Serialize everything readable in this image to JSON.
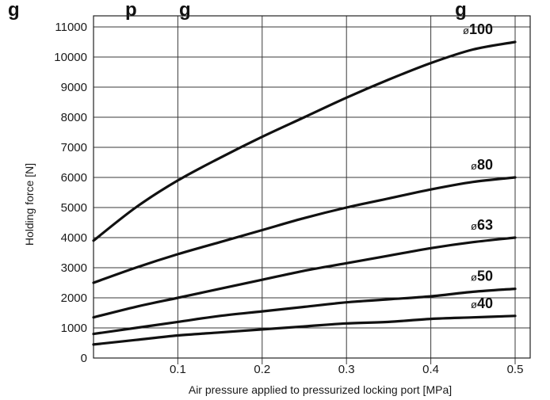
{
  "chart_data": {
    "type": "line",
    "title_fragment": "g                    p        g                                                  g",
    "xlabel": "Air pressure applied to pressurized locking port [MPa]",
    "ylabel": "Holding force [N]",
    "xlim": [
      0,
      0.5
    ],
    "ylim": [
      0,
      11000
    ],
    "x_ticks": [
      "0.1",
      "0.2",
      "0.3",
      "0.4",
      "0.5"
    ],
    "y_ticks": [
      "0",
      "1000",
      "2000",
      "3000",
      "4000",
      "5000",
      "6000",
      "7000",
      "8000",
      "9000",
      "10000",
      "11000"
    ],
    "grid": true,
    "series": [
      {
        "name": "100",
        "x": [
          0,
          0.05,
          0.1,
          0.15,
          0.2,
          0.25,
          0.3,
          0.35,
          0.4,
          0.45,
          0.5
        ],
        "values": [
          3900,
          5000,
          5900,
          6650,
          7350,
          8000,
          8650,
          9250,
          9800,
          10250,
          10500
        ]
      },
      {
        "name": "80",
        "x": [
          0,
          0.05,
          0.1,
          0.15,
          0.2,
          0.25,
          0.3,
          0.35,
          0.4,
          0.45,
          0.5
        ],
        "values": [
          2500,
          3000,
          3450,
          3850,
          4250,
          4650,
          5000,
          5300,
          5600,
          5850,
          6000
        ]
      },
      {
        "name": "63",
        "x": [
          0,
          0.05,
          0.1,
          0.15,
          0.2,
          0.25,
          0.3,
          0.35,
          0.4,
          0.45,
          0.5
        ],
        "values": [
          1350,
          1700,
          2000,
          2300,
          2600,
          2900,
          3150,
          3400,
          3650,
          3850,
          4000
        ]
      },
      {
        "name": "50",
        "x": [
          0,
          0.05,
          0.1,
          0.15,
          0.2,
          0.25,
          0.3,
          0.35,
          0.4,
          0.45,
          0.5
        ],
        "values": [
          800,
          1000,
          1200,
          1400,
          1550,
          1700,
          1850,
          1950,
          2050,
          2200,
          2300
        ]
      },
      {
        "name": "40",
        "x": [
          0,
          0.05,
          0.1,
          0.15,
          0.2,
          0.25,
          0.3,
          0.35,
          0.4,
          0.45,
          0.5
        ],
        "values": [
          450,
          600,
          750,
          850,
          950,
          1050,
          1150,
          1200,
          1300,
          1350,
          1400
        ]
      }
    ],
    "series_label_prefix": "ø"
  }
}
